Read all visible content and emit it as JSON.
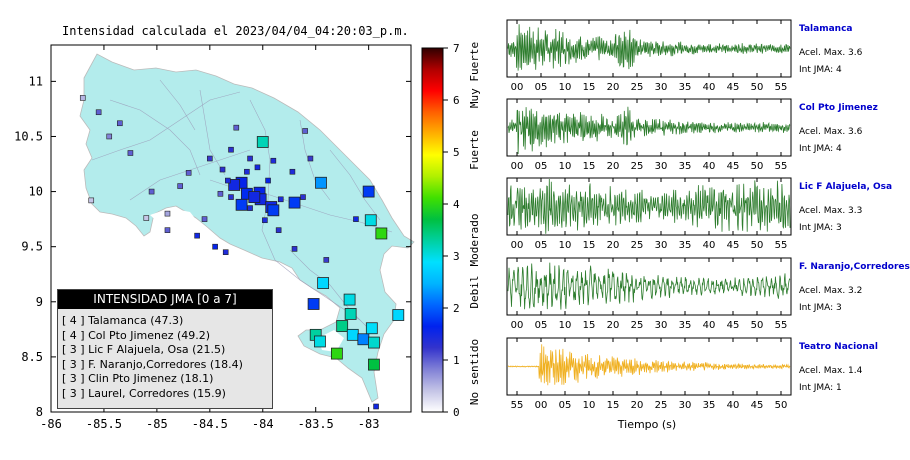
{
  "map": {
    "title": "Intensidad calculada el 2023/04/04_04:20:03_p.m.",
    "xticks": [
      "-86",
      "-85.5",
      "-85",
      "-84.5",
      "-84",
      "-83.5",
      "-83"
    ],
    "yticks": [
      "11",
      "10.5",
      "10",
      "9.5",
      "9",
      "8.5",
      "8"
    ],
    "land_color": "#b3ecec",
    "stations": [
      {
        "lon": -84.0,
        "lat": 10.45,
        "int": 3.2,
        "big": true
      },
      {
        "lon": -84.03,
        "lat": 9.99,
        "int": 1.6,
        "big": true
      },
      {
        "lon": -84.02,
        "lat": 9.93,
        "int": 1.5,
        "big": true
      },
      {
        "lon": -83.92,
        "lat": 9.86,
        "int": 1.5,
        "big": true
      },
      {
        "lon": -83.9,
        "lat": 9.83,
        "int": 1.8,
        "big": true
      },
      {
        "lon": -84.2,
        "lat": 10.08,
        "int": 1.6,
        "big": true
      },
      {
        "lon": -84.15,
        "lat": 9.98,
        "int": 1.7,
        "big": true
      },
      {
        "lon": -84.08,
        "lat": 9.95,
        "int": 1.5,
        "big": true
      },
      {
        "lon": -84.27,
        "lat": 10.06,
        "int": 1.5,
        "big": true
      },
      {
        "lon": -84.2,
        "lat": 9.88,
        "int": 1.8,
        "big": true
      },
      {
        "lon": -83.83,
        "lat": 9.93,
        "int": 1.4,
        "big": false
      },
      {
        "lon": -83.7,
        "lat": 9.9,
        "int": 1.8,
        "big": true
      },
      {
        "lon": -83.45,
        "lat": 10.08,
        "int": 2.3,
        "big": true
      },
      {
        "lon": -83.0,
        "lat": 10.0,
        "int": 1.8,
        "big": true
      },
      {
        "lon": -82.98,
        "lat": 9.74,
        "int": 3.0,
        "big": true
      },
      {
        "lon": -82.88,
        "lat": 9.62,
        "int": 4.0,
        "big": true
      },
      {
        "lon": -83.43,
        "lat": 9.17,
        "int": 2.8,
        "big": true
      },
      {
        "lon": -83.52,
        "lat": 8.98,
        "int": 1.8,
        "big": true
      },
      {
        "lon": -83.18,
        "lat": 9.02,
        "int": 3.0,
        "big": true
      },
      {
        "lon": -83.17,
        "lat": 8.89,
        "int": 3.2,
        "big": true
      },
      {
        "lon": -83.25,
        "lat": 8.78,
        "int": 3.4,
        "big": true
      },
      {
        "lon": -83.15,
        "lat": 8.7,
        "int": 2.8,
        "big": true
      },
      {
        "lon": -83.05,
        "lat": 8.66,
        "int": 2.2,
        "big": true
      },
      {
        "lon": -82.97,
        "lat": 8.76,
        "int": 2.9,
        "big": true
      },
      {
        "lon": -82.95,
        "lat": 8.63,
        "int": 3.1,
        "big": true
      },
      {
        "lon": -83.5,
        "lat": 8.7,
        "int": 3.3,
        "big": true
      },
      {
        "lon": -83.46,
        "lat": 8.64,
        "int": 3.0,
        "big": true
      },
      {
        "lon": -83.3,
        "lat": 8.53,
        "int": 4.0,
        "big": true
      },
      {
        "lon": -82.95,
        "lat": 8.43,
        "int": 3.7,
        "big": true
      },
      {
        "lon": -82.72,
        "lat": 8.88,
        "int": 2.8,
        "big": true
      },
      {
        "lon": -84.35,
        "lat": 9.45,
        "int": 1.4,
        "big": false
      },
      {
        "lon": -84.45,
        "lat": 9.5,
        "int": 1.6,
        "big": false
      },
      {
        "lon": -84.62,
        "lat": 9.6,
        "int": 1.5,
        "big": false
      },
      {
        "lon": -84.9,
        "lat": 9.8,
        "int": 0.6,
        "big": false
      },
      {
        "lon": -85.1,
        "lat": 9.76,
        "int": 0.4,
        "big": false
      },
      {
        "lon": -85.25,
        "lat": 10.35,
        "int": 1.0,
        "big": false
      },
      {
        "lon": -85.45,
        "lat": 10.5,
        "int": 0.8,
        "big": false
      },
      {
        "lon": -85.55,
        "lat": 10.72,
        "int": 1.0,
        "big": false
      },
      {
        "lon": -85.7,
        "lat": 10.85,
        "int": 0.5,
        "big": false
      },
      {
        "lon": -85.35,
        "lat": 10.62,
        "int": 1.0,
        "big": false
      },
      {
        "lon": -85.62,
        "lat": 9.92,
        "int": 0.4,
        "big": false
      },
      {
        "lon": -85.05,
        "lat": 10.0,
        "int": 1.0,
        "big": false
      },
      {
        "lon": -84.78,
        "lat": 10.05,
        "int": 1.0,
        "big": false
      },
      {
        "lon": -84.7,
        "lat": 10.17,
        "int": 1.0,
        "big": false
      },
      {
        "lon": -84.5,
        "lat": 10.3,
        "int": 1.2,
        "big": false
      },
      {
        "lon": -84.3,
        "lat": 10.38,
        "int": 1.3,
        "big": false
      },
      {
        "lon": -84.12,
        "lat": 10.3,
        "int": 1.3,
        "big": false
      },
      {
        "lon": -84.15,
        "lat": 10.18,
        "int": 1.4,
        "big": false
      },
      {
        "lon": -84.05,
        "lat": 10.22,
        "int": 1.5,
        "big": false
      },
      {
        "lon": -83.9,
        "lat": 10.28,
        "int": 1.4,
        "big": false
      },
      {
        "lon": -83.72,
        "lat": 10.18,
        "int": 1.4,
        "big": false
      },
      {
        "lon": -83.55,
        "lat": 10.3,
        "int": 1.2,
        "big": false
      },
      {
        "lon": -83.95,
        "lat": 10.1,
        "int": 1.6,
        "big": false
      },
      {
        "lon": -84.33,
        "lat": 10.1,
        "int": 1.4,
        "big": false
      },
      {
        "lon": -84.4,
        "lat": 9.98,
        "int": 1.0,
        "big": false
      },
      {
        "lon": -84.3,
        "lat": 9.95,
        "int": 1.3,
        "big": false
      },
      {
        "lon": -84.12,
        "lat": 9.85,
        "int": 1.4,
        "big": false
      },
      {
        "lon": -83.98,
        "lat": 9.74,
        "int": 1.4,
        "big": false
      },
      {
        "lon": -83.85,
        "lat": 9.65,
        "int": 1.3,
        "big": false
      },
      {
        "lon": -84.55,
        "lat": 9.75,
        "int": 1.0,
        "big": false
      },
      {
        "lon": -83.7,
        "lat": 9.48,
        "int": 1.3,
        "big": false
      },
      {
        "lon": -83.4,
        "lat": 9.38,
        "int": 1.2,
        "big": false
      },
      {
        "lon": -83.62,
        "lat": 9.95,
        "int": 1.3,
        "big": false
      },
      {
        "lon": -83.12,
        "lat": 9.75,
        "int": 1.5,
        "big": false
      },
      {
        "lon": -84.9,
        "lat": 9.65,
        "int": 1.0,
        "big": false
      },
      {
        "lon": -82.93,
        "lat": 8.05,
        "int": 1.5,
        "big": false
      },
      {
        "lon": -83.6,
        "lat": 10.55,
        "int": 1.0,
        "big": false
      },
      {
        "lon": -84.25,
        "lat": 10.58,
        "int": 1.0,
        "big": false
      },
      {
        "lon": -84.38,
        "lat": 10.2,
        "int": 1.3,
        "big": false
      }
    ]
  },
  "colorbar": {
    "ticks": [
      "0",
      "1",
      "2",
      "3",
      "4",
      "5",
      "6",
      "7"
    ],
    "category_labels": [
      "No sentido",
      "Debil",
      "Moderado",
      "Fuerte",
      "Muy Fuerte"
    ],
    "colors": [
      "#ffffff",
      "#c4c4e6",
      "#8080d6",
      "#3333cc",
      "#0022ee",
      "#0066ff",
      "#00b4ff",
      "#00e0ff",
      "#00d0a0",
      "#00c040",
      "#40e000",
      "#b0f000",
      "#ffff00",
      "#ffb000",
      "#ff6000",
      "#ff0000",
      "#b00000",
      "#300000"
    ]
  },
  "legend": {
    "title": "INTENSIDAD JMA [0 a 7]",
    "items": [
      "[ 4 ]  Talamanca (47.3)",
      "[ 4 ]  Col Pto Jimenez (49.2)",
      "[ 3 ]  Lic F Alajuela, Osa (21.5)",
      "[ 3 ]  F. Naranjo,Corredores (18.4)",
      "[ 3 ]  Clin Pto Jimenez (18.1)",
      "[ 3 ]  Laurel, Corredores (15.9)"
    ]
  },
  "traces": [
    {
      "name": "Talamanca",
      "acel": "Acel. Max. 3.6",
      "jma": "Int JMA: 4",
      "color": "#2e7d2e",
      "kind": "burst",
      "ticks": [
        "00",
        "05",
        "10",
        "15",
        "20",
        "25",
        "30",
        "35",
        "40",
        "45",
        "50",
        "55"
      ]
    },
    {
      "name": "Col Pto Jimenez",
      "acel": "Acel. Max. 3.6",
      "jma": "Int JMA: 4",
      "color": "#2e7d2e",
      "kind": "burst",
      "ticks": [
        "00",
        "05",
        "10",
        "15",
        "20",
        "25",
        "30",
        "35",
        "40",
        "45",
        "50",
        "55"
      ]
    },
    {
      "name": "Lic F Alajuela, Osa",
      "acel": "Acel. Max. 3.3",
      "jma": "Int JMA: 3",
      "color": "#2e7d2e",
      "kind": "dense",
      "ticks": [
        "00",
        "05",
        "10",
        "15",
        "20",
        "25",
        "30",
        "35",
        "40",
        "45",
        "50",
        "55"
      ]
    },
    {
      "name": "F. Naranjo,Corredores",
      "acel": "Acel. Max. 3.2",
      "jma": "Int JMA: 3",
      "color": "#2e7d2e",
      "kind": "slow",
      "ticks": [
        "00",
        "05",
        "10",
        "15",
        "20",
        "25",
        "30",
        "35",
        "40",
        "45",
        "50",
        "55"
      ]
    },
    {
      "name": "Teatro Nacional",
      "acel": "Acel. Max. 1.4",
      "jma": "Int JMA: 1",
      "color": "#f0b020",
      "kind": "onset",
      "ticks": [
        "55",
        "00",
        "05",
        "10",
        "15",
        "20",
        "25",
        "30",
        "35",
        "40",
        "45",
        "50"
      ]
    }
  ],
  "time_axis_label": "Tiempo (s)"
}
